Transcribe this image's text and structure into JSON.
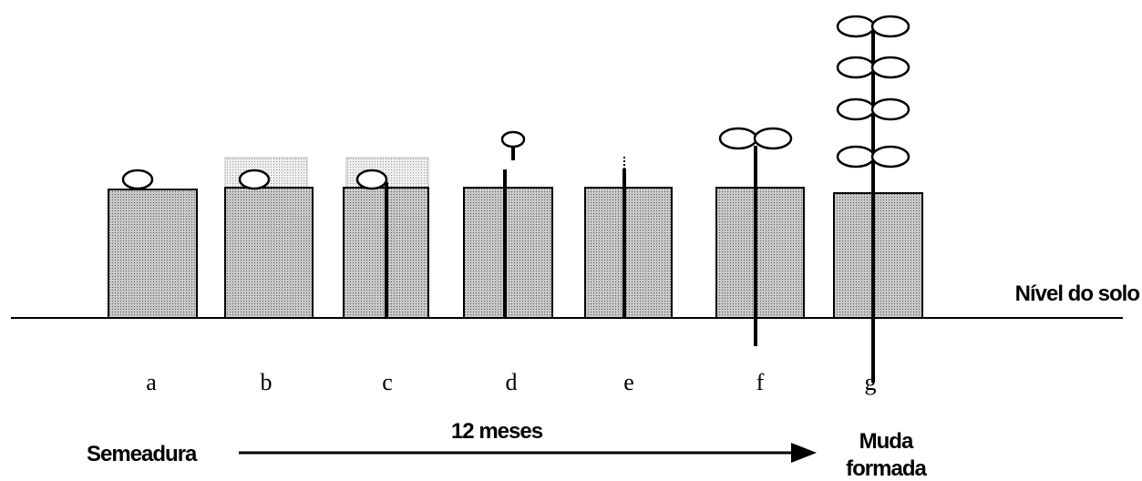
{
  "stages": [
    "a",
    "b",
    "c",
    "d",
    "e",
    "f",
    "g"
  ],
  "ground_label": "Nível do solo",
  "duration": "12 meses",
  "start_label": "Semeadura",
  "end_label": [
    "Muda",
    "formada"
  ]
}
